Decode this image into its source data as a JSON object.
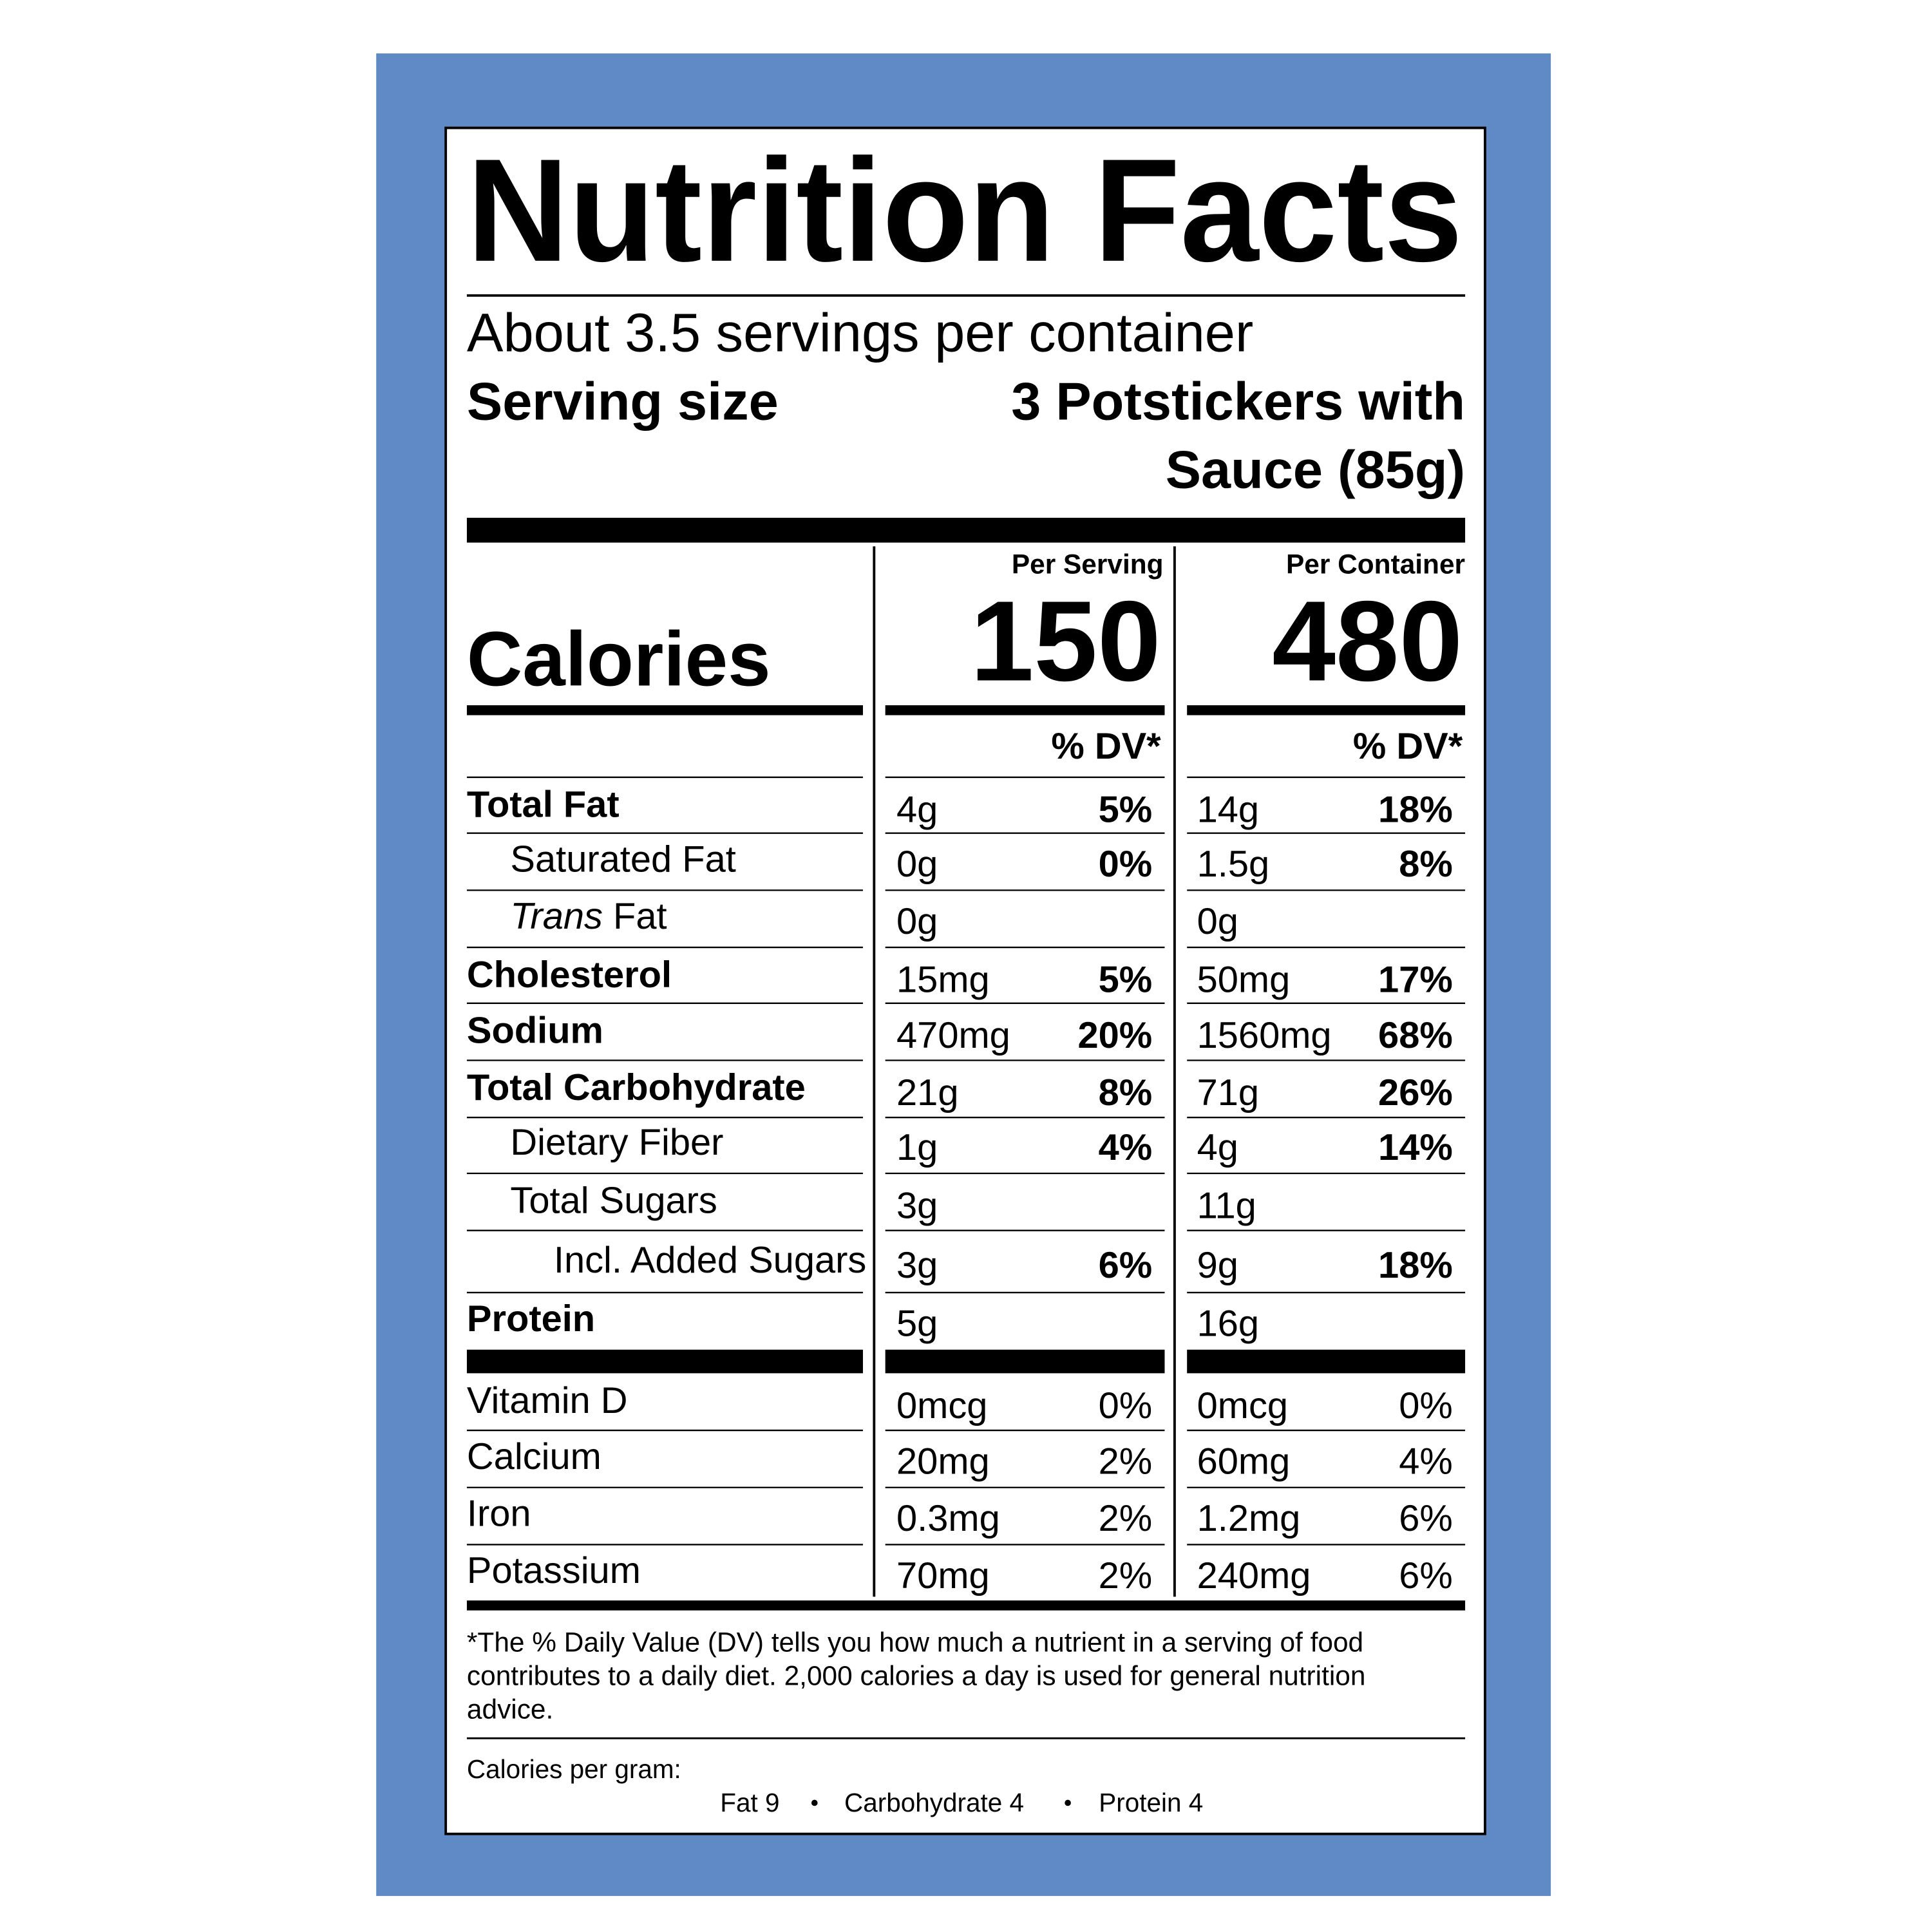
{
  "title": "Nutrition Facts",
  "servings": "About 3.5 servings per container",
  "serving_size": {
    "label": "Serving size",
    "value_lines": [
      "3 Potstickers with",
      "Sauce (85g)"
    ]
  },
  "calories": {
    "label": "Calories",
    "per_serving_header": "Per Serving",
    "per_container_header": "Per Container",
    "per_serving": "150",
    "per_container": "480"
  },
  "dv_header": "% DV*",
  "nutrients": [
    [
      "Total Fat",
      "4g",
      "5%",
      "14g",
      "18%"
    ],
    [
      "Saturated Fat",
      "0g",
      "0%",
      "1.5g",
      "8%"
    ],
    [
      "Trans Fat",
      "0g",
      null,
      "0g",
      null
    ],
    [
      "Cholesterol",
      "15mg",
      "5%",
      "50mg",
      "17%"
    ],
    [
      "Sodium",
      "470mg",
      "20%",
      "1560mg",
      "68%"
    ],
    [
      "Total Carbohydrate",
      "21g",
      "8%",
      "71g",
      "26%"
    ],
    [
      "Dietary Fiber",
      "1g",
      "4%",
      "4g",
      "14%"
    ],
    [
      "Total Sugars",
      "3g",
      null,
      "11g",
      null
    ],
    [
      "Incl. Added Sugars",
      "3g",
      "6%",
      "9g",
      "18%"
    ],
    [
      "Protein",
      "5g",
      null,
      "16g",
      null
    ]
  ],
  "vitamins": [
    [
      "Vitamin D",
      "0mcg",
      "0%",
      "0mcg",
      "0%"
    ],
    [
      "Calcium",
      "20mg",
      "2%",
      "60mg",
      "4%"
    ],
    [
      "Iron",
      "0.3mg",
      "2%",
      "1.2mg",
      "6%"
    ],
    [
      "Potassium",
      "70mg",
      "2%",
      "240mg",
      "6%"
    ]
  ],
  "footnote": [
    "*The % Daily Value (DV) tells you how much a nutrient in a serving of food",
    "contributes to a daily diet. 2,000 calories a day is used for general nutrition",
    "advice."
  ],
  "calories_per_gram": {
    "label": "Calories per gram:",
    "items": [
      "Fat 9",
      "Carbohydrate 4",
      "Protein 4"
    ]
  }
}
